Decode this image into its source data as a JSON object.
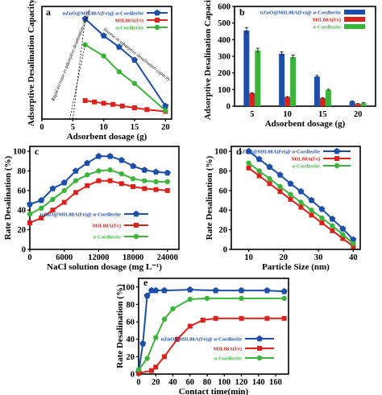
{
  "colors": {
    "blue": "#1e4fa8",
    "red": "#d9221c",
    "green": "#3cb43c",
    "axis": "#000000"
  },
  "chart_data": [
    {
      "panel": "a",
      "type": "line",
      "xlabel": "Adsorbent dosage (g)",
      "ylabel": "Adsorptive Desalination Capacity",
      "xlim": [
        0,
        21
      ],
      "ylim": [
        0,
        500
      ],
      "xticks": [
        0,
        5,
        10,
        15,
        20
      ],
      "yticks": [],
      "grid": false,
      "legend_position": "top-right",
      "annotations": [
        "Rapid increase in adsorptive desalination capacity",
        "Inverse in adsorptive desalination capacity"
      ],
      "series": [
        {
          "name": "nZnO@MIL88A(Fe)@ α-Cordierite",
          "color": "blue",
          "marker": "pentagon",
          "x": [
            7,
            10,
            12.5,
            15,
            20
          ],
          "y": [
            445,
            370,
            320,
            262,
            58
          ]
        },
        {
          "name": "MIL88A(Fe)",
          "color": "red",
          "marker": "square",
          "x": [
            7,
            8.5,
            10,
            11.5,
            13,
            15,
            17,
            20
          ],
          "y": [
            82,
            76,
            70,
            65,
            58,
            50,
            42,
            34
          ]
        },
        {
          "name": "α-Cordierite",
          "color": "green",
          "marker": "circle",
          "x": [
            7,
            10,
            12.5,
            15,
            20
          ],
          "y": [
            330,
            280,
            210,
            158,
            38
          ]
        }
      ]
    },
    {
      "panel": "b",
      "type": "bar",
      "xlabel": "Adsorbent dosage (g)",
      "ylabel": "Adsorptive Desalination Capacity",
      "categories": [
        "5",
        "10",
        "15",
        "20"
      ],
      "ylim": [
        0,
        600
      ],
      "yticks": [
        0,
        100,
        200,
        300,
        400,
        500,
        600
      ],
      "legend_position": "top-right",
      "series": [
        {
          "name": "nZnO@MIL88A(Fe)@ α-Cordierite",
          "color": "blue",
          "values": [
            455,
            315,
            178,
            28
          ]
        },
        {
          "name": "MIL88A(Fe)",
          "color": "red",
          "values": [
            78,
            55,
            48,
            13
          ]
        },
        {
          "name": "α-Cordierite",
          "color": "green",
          "values": [
            335,
            295,
            98,
            18
          ]
        }
      ]
    },
    {
      "panel": "c",
      "type": "line",
      "xlabel": "NaCl  solution dosage (mg L⁻¹)",
      "ylabel": "Rate Desalination (%)",
      "xlim": [
        0,
        26000
      ],
      "ylim": [
        0,
        105
      ],
      "xticks": [
        0,
        6000,
        12000,
        18000,
        24000
      ],
      "yticks": [
        0,
        20,
        40,
        60,
        80,
        100
      ],
      "legend_position": "lower-center",
      "series": [
        {
          "name": "nZnO@MIL88A(Fe)@ α-Cordierite",
          "color": "blue",
          "marker": "pentagon",
          "x": [
            0,
            2000,
            4000,
            6000,
            8000,
            10000,
            12000,
            14000,
            16000,
            18000,
            20000,
            22000,
            24000
          ],
          "y": [
            46,
            50,
            62,
            68,
            80,
            88,
            95,
            95,
            91,
            85,
            81,
            79,
            78
          ]
        },
        {
          "name": "MIL88A(Fe)",
          "color": "red",
          "marker": "square",
          "x": [
            0,
            2000,
            4000,
            6000,
            8000,
            10000,
            12000,
            14000,
            16000,
            18000,
            20000,
            22000,
            24000
          ],
          "y": [
            27,
            32,
            40,
            48,
            58,
            65,
            70,
            70,
            67,
            64,
            62,
            61,
            60
          ]
        },
        {
          "name": "α-Cordierite",
          "color": "green",
          "marker": "circle",
          "x": [
            0,
            2000,
            4000,
            6000,
            8000,
            10000,
            12000,
            14000,
            16000,
            18000,
            20000,
            22000,
            24000
          ],
          "y": [
            36,
            42,
            51,
            60,
            70,
            76,
            80,
            81,
            77,
            72,
            70,
            69,
            69
          ]
        }
      ]
    },
    {
      "panel": "d",
      "type": "line",
      "xlabel": "Particle Size (nm)",
      "ylabel": "Rate Desalination (%)",
      "xlim": [
        5,
        42
      ],
      "ylim": [
        0,
        105
      ],
      "xticks": [
        10,
        20,
        30,
        40
      ],
      "yticks": [
        0,
        20,
        40,
        60,
        80,
        100
      ],
      "legend_position": "top-right",
      "series": [
        {
          "name": "nZnO@MIL88A(Fe)@ α-Cordierite",
          "color": "blue",
          "marker": "pentagon",
          "x": [
            10,
            13,
            16,
            19,
            22,
            25,
            28,
            31,
            34,
            37,
            40
          ],
          "y": [
            100,
            92,
            84,
            76,
            67,
            59,
            50,
            41,
            31,
            21,
            10
          ]
        },
        {
          "name": "MIL88A(Fe)",
          "color": "red",
          "marker": "square",
          "x": [
            10,
            13,
            16,
            19,
            22,
            25,
            28,
            31,
            34,
            37,
            40
          ],
          "y": [
            83,
            75,
            67,
            59,
            51,
            43,
            35,
            27,
            19,
            11,
            3
          ]
        },
        {
          "name": "α-Cordierite",
          "color": "green",
          "marker": "circle",
          "x": [
            10,
            13,
            16,
            19,
            22,
            25,
            28,
            31,
            34,
            37,
            40
          ],
          "y": [
            88,
            80,
            72,
            64,
            56,
            48,
            40,
            32,
            24,
            15,
            6
          ]
        }
      ]
    },
    {
      "panel": "e",
      "type": "line",
      "xlabel": "Contact time(min)",
      "ylabel": "Rate Desalination (%)",
      "xlim": [
        0,
        175
      ],
      "ylim": [
        0,
        110
      ],
      "xticks": [
        0,
        20,
        40,
        60,
        80,
        100,
        120,
        140,
        160
      ],
      "yticks": [
        0,
        20,
        40,
        60,
        80,
        100
      ],
      "legend_position": "center-right",
      "series": [
        {
          "name": "nZnO@MIL88A(Fe)@ α-Cordierite",
          "color": "blue",
          "marker": "pentagon",
          "x": [
            0,
            5,
            10,
            15,
            20,
            30,
            60,
            90,
            120,
            150,
            170
          ],
          "y": [
            2,
            35,
            90,
            96,
            96,
            96,
            97,
            96,
            96,
            96,
            95
          ]
        },
        {
          "name": "MIL88A(Fe)",
          "color": "red",
          "marker": "square",
          "x": [
            0,
            15,
            20,
            30,
            45,
            60,
            75,
            90,
            120,
            150,
            170
          ],
          "y": [
            1,
            4,
            8,
            20,
            40,
            55,
            62,
            64,
            64,
            64,
            64
          ]
        },
        {
          "name": "α-Cordierite",
          "color": "green",
          "marker": "circle",
          "x": [
            0,
            10,
            20,
            30,
            40,
            60,
            80,
            120,
            170
          ],
          "y": [
            5,
            18,
            42,
            63,
            75,
            86,
            87,
            87,
            87
          ]
        }
      ]
    }
  ]
}
